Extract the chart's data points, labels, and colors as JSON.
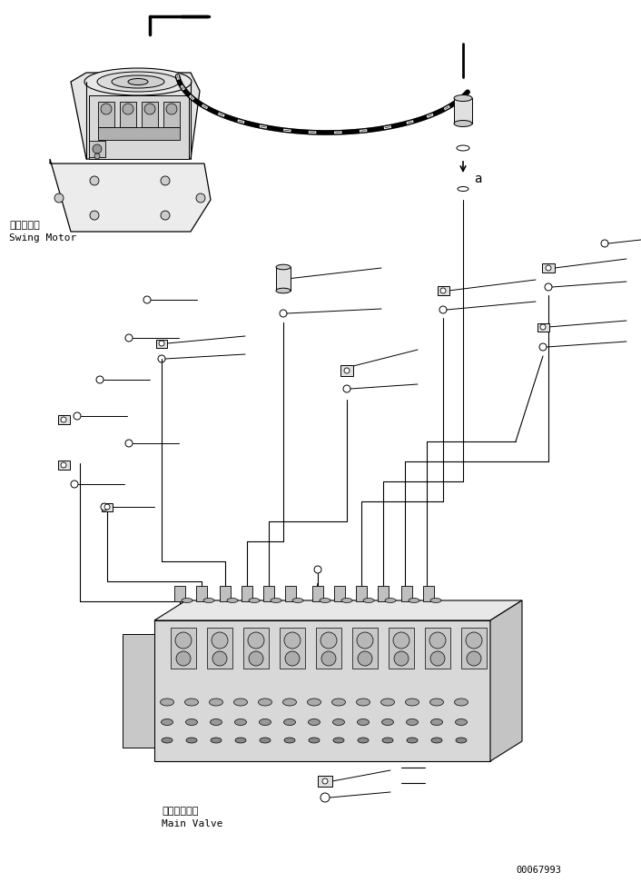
{
  "bg_color": "#ffffff",
  "line_color": "#000000",
  "text_color": "#000000",
  "fig_width": 7.06,
  "fig_height": 9.71,
  "dpi": 100,
  "part_number": "00067993",
  "swing_motor_label_jp": "旋回モータ",
  "swing_motor_label_en": "Swing Motor",
  "main_valve_label_jp": "メインバルブ",
  "main_valve_label_en": "Main Valve",
  "label_a": "a"
}
